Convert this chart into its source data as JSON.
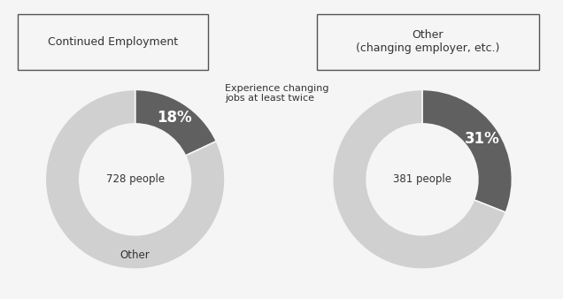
{
  "left_chart": {
    "label": "Continued Employment",
    "center_text": "728 people",
    "slices": [
      18,
      82
    ],
    "colors": [
      "#606060",
      "#d0d0d0"
    ],
    "pct_label": "18%",
    "other_label": "Other"
  },
  "right_chart": {
    "label": "Other\n(changing employer, etc.)",
    "center_text": "381 people",
    "slices": [
      31,
      69
    ],
    "colors": [
      "#606060",
      "#d0d0d0"
    ],
    "pct_label": "31%"
  },
  "annotation_text": "Experience changing\njobs at least twice",
  "background_color": "#f5f5f5",
  "dark_color": "#606060",
  "light_color": "#d0d0d0",
  "white": "#ffffff",
  "donut_width": 0.38,
  "r_mid": 0.81
}
